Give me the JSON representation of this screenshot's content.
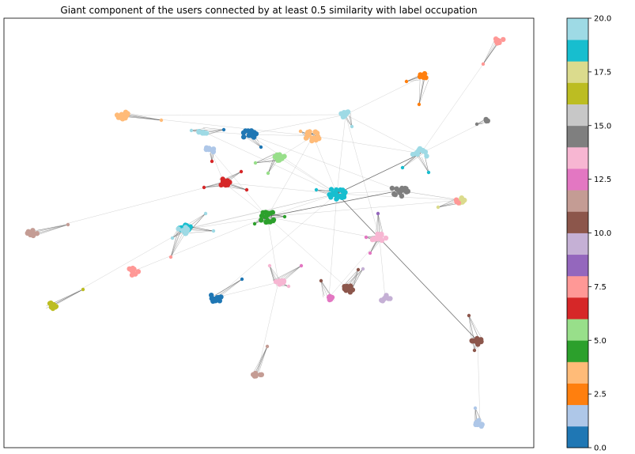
{
  "title": "Giant component of the users connected by at least 0.5 similarity with label occupation",
  "colorbar": {
    "colormap": "tab20",
    "range": [
      0.0,
      20.0
    ],
    "ticks": [
      "0.0",
      "2.5",
      "5.0",
      "7.5",
      "10.0",
      "12.5",
      "15.0",
      "17.5",
      "20.0"
    ],
    "colors": [
      "#1f77b4",
      "#aec7e8",
      "#ff7f0e",
      "#ffbb78",
      "#2ca02c",
      "#98df8a",
      "#d62728",
      "#ff9896",
      "#9467bd",
      "#c5b0d5",
      "#8c564b",
      "#c49c94",
      "#e377c2",
      "#f7b6d2",
      "#7f7f7f",
      "#c7c7c7",
      "#bcbd22",
      "#dbdb8d",
      "#17becf",
      "#9edae5"
    ]
  },
  "clusters": [
    {
      "label": 19,
      "size": 10,
      "spread": 5
    },
    {
      "label": 19,
      "size": 8,
      "spread": 6
    },
    {
      "label": 1,
      "size": 9,
      "spread": 5
    },
    {
      "label": 0,
      "size": 14,
      "spread": 7
    },
    {
      "label": 3,
      "size": 14,
      "spread": 7
    },
    {
      "label": 3,
      "size": 16,
      "spread": 8
    },
    {
      "label": 19,
      "size": 12,
      "spread": 8
    },
    {
      "label": 5,
      "size": 10,
      "spread": 6
    },
    {
      "label": 6,
      "size": 14,
      "spread": 6
    },
    {
      "label": 18,
      "size": 22,
      "spread": 9
    },
    {
      "label": 14,
      "size": 16,
      "spread": 9
    },
    {
      "label": 18,
      "size": 14,
      "spread": 7
    },
    {
      "label": 17,
      "size": 9,
      "spread": 5
    },
    {
      "label": 4,
      "size": 18,
      "spread": 9
    },
    {
      "label": 19,
      "size": 10,
      "spread": 7
    },
    {
      "label": 11,
      "size": 9,
      "spread": 5
    },
    {
      "label": 13,
      "size": 14,
      "spread": 8
    },
    {
      "label": 7,
      "size": 10,
      "spread": 6
    },
    {
      "label": 16,
      "size": 8,
      "spread": 5
    },
    {
      "label": 0,
      "size": 12,
      "spread": 7
    },
    {
      "label": 13,
      "size": 10,
      "spread": 6
    },
    {
      "label": 12,
      "size": 6,
      "spread": 4
    },
    {
      "label": 10,
      "size": 10,
      "spread": 6
    },
    {
      "label": 9,
      "size": 8,
      "spread": 5
    },
    {
      "label": 10,
      "size": 12,
      "spread": 6
    },
    {
      "label": 11,
      "size": 8,
      "spread": 5
    },
    {
      "label": 1,
      "size": 8,
      "spread": 5
    },
    {
      "label": 7,
      "size": 8,
      "spread": 5
    },
    {
      "label": 2,
      "size": 5,
      "spread": 4
    },
    {
      "label": 14,
      "size": 4,
      "spread": 3
    },
    {
      "label": 7,
      "size": 3,
      "spread": 3
    }
  ]
}
